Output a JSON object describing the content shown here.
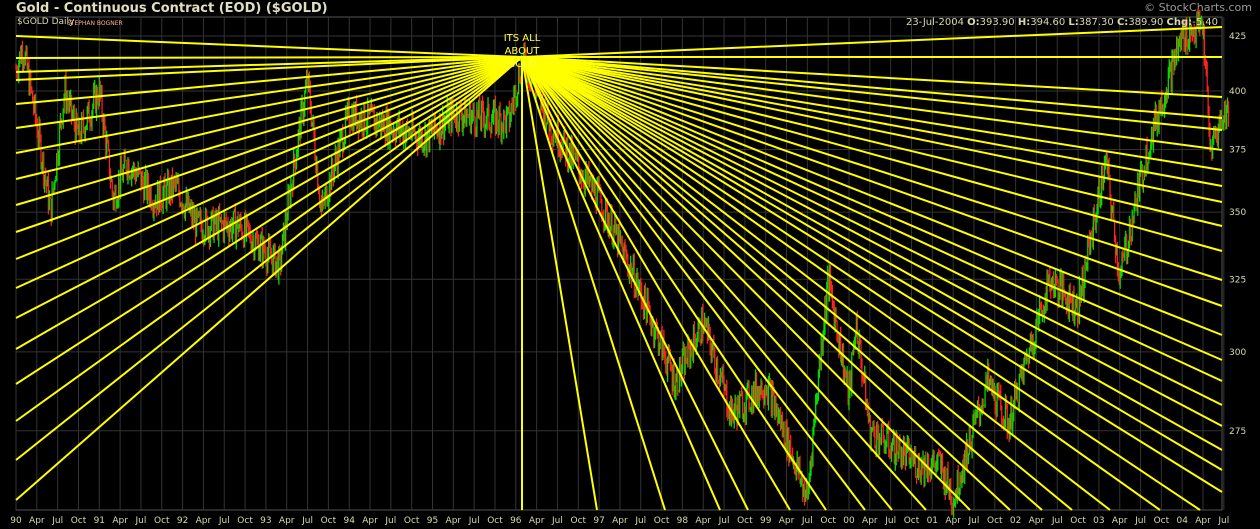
{
  "header": {
    "title": "Gold - Continuous Contract (EOD) ($GOLD)",
    "copyright": "© StockCharts.com",
    "symbol_label": "$GOLD Daily",
    "author": "STEPHAN BOGNER",
    "date": "23-Jul-2004",
    "open_label": "O:",
    "open": "393.90",
    "high_label": "H:",
    "high": "394.60",
    "low_label": "L:",
    "low": "387.30",
    "close_label": "C:",
    "close": "389.90",
    "chg_label": "Chg:",
    "chg": "-5.40"
  },
  "chart_data": {
    "type": "ohlc",
    "title": "Gold - Continuous Contract (EOD) ($GOLD)",
    "y_scale": "log",
    "ylim": [
      252,
      434
    ],
    "y_ticks": [
      275,
      300,
      325,
      350,
      375,
      400,
      425
    ],
    "x_range": [
      "1990-01",
      "2004-07"
    ],
    "x_tick_labels": [
      "90",
      "Apr",
      "Jul",
      "Oct",
      "91",
      "Apr",
      "Jul",
      "Oct",
      "92",
      "Apr",
      "Jul",
      "Oct",
      "93",
      "Apr",
      "Jul",
      "Oct",
      "94",
      "Apr",
      "Jul",
      "Oct",
      "95",
      "Apr",
      "Jul",
      "Oct",
      "96",
      "Apr",
      "Jul",
      "Oct",
      "97",
      "Apr",
      "Jul",
      "Oct",
      "98",
      "Apr",
      "Jul",
      "Oct",
      "99",
      "Apr",
      "Jul",
      "Oct",
      "00",
      "Apr",
      "Jul",
      "Oct",
      "01",
      "Apr",
      "Jul",
      "Oct",
      "02",
      "Apr",
      "Jul",
      "Oct",
      "03",
      "Apr",
      "Jul",
      "Oct",
      "04",
      "Apr",
      "Jul"
    ],
    "grid": true,
    "up_color": "#00dd00",
    "down_color": "#ff2020",
    "price_path": [
      [
        "1990-01",
        410
      ],
      [
        "1990-02",
        420
      ],
      [
        "1990-06",
        350
      ],
      [
        "1990-08",
        400
      ],
      [
        "1990-10",
        380
      ],
      [
        "1991-01",
        400
      ],
      [
        "1991-03",
        355
      ],
      [
        "1991-05",
        370
      ],
      [
        "1991-09",
        355
      ],
      [
        "1991-12",
        360
      ],
      [
        "1992-03",
        345
      ],
      [
        "1992-09",
        345
      ],
      [
        "1993-03",
        330
      ],
      [
        "1993-07",
        405
      ],
      [
        "1993-09",
        350
      ],
      [
        "1994-01",
        390
      ],
      [
        "1994-12",
        380
      ],
      [
        "1995-04",
        390
      ],
      [
        "1995-12",
        387
      ],
      [
        "1996-02",
        415
      ],
      [
        "1996-06",
        385
      ],
      [
        "1997-01",
        355
      ],
      [
        "1997-07",
        320
      ],
      [
        "1997-12",
        290
      ],
      [
        "1998-04",
        310
      ],
      [
        "1998-08",
        280
      ],
      [
        "1999-01",
        290
      ],
      [
        "1999-07",
        255
      ],
      [
        "1999-10",
        325
      ],
      [
        "2000-01",
        285
      ],
      [
        "2000-02",
        310
      ],
      [
        "2000-04",
        275
      ],
      [
        "2000-11",
        265
      ],
      [
        "2001-02",
        265
      ],
      [
        "2001-04",
        255
      ],
      [
        "2001-09",
        290
      ],
      [
        "2001-12",
        277
      ],
      [
        "2002-06",
        325
      ],
      [
        "2002-10",
        315
      ],
      [
        "2003-02",
        370
      ],
      [
        "2003-04",
        325
      ],
      [
        "2003-06",
        350
      ],
      [
        "2003-08",
        375
      ],
      [
        "2003-12",
        415
      ],
      [
        "2004-01",
        425
      ],
      [
        "2004-04",
        430
      ],
      [
        "2004-05",
        375
      ],
      [
        "2004-07",
        390
      ]
    ],
    "annotation": {
      "text_lines": [
        "ITS ALL",
        "ABOUT",
        "GOLD"
      ],
      "color": "#ffff00"
    },
    "fan_line_color": "#ffff00"
  }
}
